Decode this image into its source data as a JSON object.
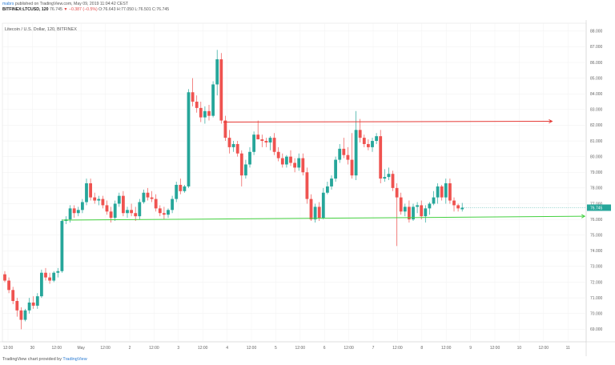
{
  "header": {
    "author": "mabrs",
    "published": "published on TradingView.com, May 09, 2019 11:04:42 CEST",
    "symbol": "BITFINEX:LTCUSD, 120",
    "price": "76.745",
    "change": "▼ −0.387 (−0.5%)",
    "ohlc": "O:76.643 H:77.050 L:76.501 C:76.745"
  },
  "chart_title": "Litecoin / U.S. Dollar, 120, BITFINEX",
  "footer": {
    "prefix": "TradingView chart provided by",
    "brand": "TradingView"
  },
  "colors": {
    "up": "#26a69a",
    "down": "#ef5350",
    "resistance": "#e53935",
    "support": "#43d13f",
    "last_price": "#26a69a"
  },
  "chart_data": {
    "type": "candlestick",
    "ylim": [
      68.2,
      88.5
    ],
    "yticks": [
      "88.000",
      "87.000",
      "86.000",
      "85.000",
      "84.000",
      "83.000",
      "82.000",
      "81.000",
      "80.000",
      "79.000",
      "78.000",
      "77.000",
      "76.000",
      "75.000",
      "74.000",
      "73.000",
      "72.000",
      "71.000",
      "70.000",
      "69.000"
    ],
    "xticks": [
      "12:00",
      "30",
      "12:00",
      "May",
      "12:00",
      "2",
      "12:00",
      "3",
      "12:00",
      "4",
      "12:00",
      "5",
      "12:00",
      "6",
      "12:00",
      "7",
      "12:00",
      "8",
      "12:00",
      "9",
      "12:00",
      "10",
      "12:00",
      "11",
      "12:00"
    ],
    "last_price_label": "76.745",
    "grid": true,
    "candles": [
      [
        72.5,
        72.7,
        72.0,
        72.1
      ],
      [
        72.1,
        72.3,
        71.3,
        71.5
      ],
      [
        71.5,
        71.7,
        70.6,
        70.8
      ],
      [
        70.8,
        71.0,
        69.8,
        70.2
      ],
      [
        70.2,
        70.4,
        69.0,
        69.6
      ],
      [
        69.6,
        70.3,
        69.5,
        70.2
      ],
      [
        70.2,
        71.0,
        70.0,
        70.7
      ],
      [
        70.7,
        71.1,
        70.3,
        70.5
      ],
      [
        70.5,
        71.3,
        70.3,
        71.1
      ],
      [
        71.1,
        72.8,
        71.0,
        72.6
      ],
      [
        72.6,
        72.9,
        72.1,
        72.3
      ],
      [
        72.3,
        72.6,
        71.9,
        72.1
      ],
      [
        72.1,
        72.7,
        72.0,
        72.6
      ],
      [
        72.6,
        72.9,
        72.3,
        72.7
      ],
      [
        72.7,
        76.0,
        72.6,
        75.9
      ],
      [
        75.9,
        76.2,
        75.7,
        76.0
      ],
      [
        76.0,
        76.9,
        75.8,
        76.7
      ],
      [
        76.7,
        76.9,
        76.1,
        76.4
      ],
      [
        76.4,
        76.8,
        76.2,
        76.6
      ],
      [
        76.6,
        77.3,
        76.4,
        77.1
      ],
      [
        77.1,
        78.6,
        76.9,
        78.3
      ],
      [
        78.3,
        78.6,
        77.2,
        77.4
      ],
      [
        77.4,
        77.7,
        77.0,
        77.2
      ],
      [
        77.2,
        77.5,
        76.9,
        77.3
      ],
      [
        77.3,
        77.5,
        76.7,
        76.9
      ],
      [
        76.9,
        77.2,
        76.3,
        76.5
      ],
      [
        76.5,
        76.8,
        75.8,
        76.1
      ],
      [
        76.1,
        77.2,
        75.9,
        77.0
      ],
      [
        77.0,
        77.7,
        76.8,
        77.5
      ],
      [
        77.5,
        77.8,
        76.2,
        76.4
      ],
      [
        76.4,
        76.8,
        76.1,
        76.6
      ],
      [
        76.6,
        77.0,
        76.2,
        76.4
      ],
      [
        76.4,
        76.8,
        75.9,
        76.2
      ],
      [
        76.2,
        77.3,
        76.0,
        77.1
      ],
      [
        77.1,
        77.9,
        77.0,
        77.7
      ],
      [
        77.7,
        78.0,
        77.2,
        77.4
      ],
      [
        77.4,
        77.8,
        77.1,
        77.3
      ],
      [
        77.3,
        77.6,
        76.5,
        76.7
      ],
      [
        76.7,
        76.9,
        76.2,
        76.4
      ],
      [
        76.4,
        76.8,
        76.0,
        76.3
      ],
      [
        76.3,
        76.7,
        76.1,
        76.6
      ],
      [
        76.6,
        77.5,
        76.4,
        77.3
      ],
      [
        77.3,
        78.4,
        77.1,
        78.2
      ],
      [
        78.2,
        78.6,
        77.6,
        77.8
      ],
      [
        77.8,
        78.2,
        77.7,
        78.1
      ],
      [
        78.1,
        84.3,
        78.0,
        84.1
      ],
      [
        84.1,
        85.0,
        83.2,
        83.5
      ],
      [
        83.5,
        83.9,
        82.8,
        83.1
      ],
      [
        83.1,
        83.5,
        82.2,
        82.5
      ],
      [
        82.5,
        83.2,
        82.1,
        82.9
      ],
      [
        82.9,
        83.3,
        82.3,
        82.6
      ],
      [
        82.6,
        84.8,
        82.5,
        84.6
      ],
      [
        84.6,
        86.8,
        83.9,
        86.2
      ],
      [
        86.2,
        86.6,
        82.1,
        82.3
      ],
      [
        82.3,
        82.6,
        81.0,
        81.2
      ],
      [
        81.2,
        81.7,
        80.2,
        80.6
      ],
      [
        80.6,
        81.0,
        80.3,
        80.8
      ],
      [
        80.8,
        81.0,
        80.0,
        80.2
      ],
      [
        80.2,
        80.4,
        78.1,
        78.8
      ],
      [
        78.8,
        79.8,
        78.6,
        79.5
      ],
      [
        79.5,
        80.6,
        79.3,
        80.3
      ],
      [
        80.3,
        81.6,
        80.1,
        81.4
      ],
      [
        81.4,
        82.3,
        81.2,
        81.1
      ],
      [
        81.1,
        81.4,
        80.6,
        81.0
      ],
      [
        81.0,
        81.2,
        80.6,
        80.9
      ],
      [
        80.9,
        81.3,
        80.4,
        81.2
      ],
      [
        81.2,
        81.5,
        80.1,
        80.3
      ],
      [
        80.3,
        80.6,
        79.7,
        79.9
      ],
      [
        79.9,
        80.2,
        79.3,
        79.5
      ],
      [
        79.5,
        80.1,
        79.3,
        80.0
      ],
      [
        80.0,
        80.4,
        79.4,
        79.6
      ],
      [
        79.6,
        79.9,
        79.0,
        79.3
      ],
      [
        79.3,
        80.2,
        79.1,
        79.9
      ],
      [
        79.9,
        80.2,
        78.8,
        79.0
      ],
      [
        79.0,
        79.3,
        77.0,
        77.3
      ],
      [
        77.3,
        77.6,
        75.9,
        76.0
      ],
      [
        76.0,
        77.0,
        75.8,
        76.8
      ],
      [
        76.8,
        77.1,
        75.9,
        76.1
      ],
      [
        76.1,
        78.0,
        76.0,
        77.7
      ],
      [
        77.7,
        78.4,
        77.6,
        78.1
      ],
      [
        78.1,
        78.8,
        77.9,
        78.6
      ],
      [
        78.6,
        80.0,
        78.4,
        79.8
      ],
      [
        79.8,
        80.8,
        79.6,
        80.5
      ],
      [
        80.5,
        81.2,
        79.9,
        80.1
      ],
      [
        80.1,
        80.6,
        79.5,
        79.8
      ],
      [
        79.8,
        81.5,
        78.6,
        78.8
      ],
      [
        78.8,
        82.9,
        78.5,
        81.7
      ],
      [
        81.7,
        82.4,
        80.9,
        81.2
      ],
      [
        81.2,
        81.4,
        80.6,
        80.8
      ],
      [
        80.8,
        81.1,
        80.4,
        80.6
      ],
      [
        80.6,
        81.2,
        80.3,
        81.0
      ],
      [
        81.0,
        81.5,
        80.8,
        81.3
      ],
      [
        81.3,
        81.7,
        78.3,
        78.6
      ],
      [
        78.6,
        79.2,
        78.4,
        78.7
      ],
      [
        78.7,
        79.3,
        78.5,
        78.9
      ],
      [
        78.9,
        79.1,
        77.8,
        78.0
      ],
      [
        78.0,
        78.3,
        74.3,
        77.4
      ],
      [
        77.4,
        77.7,
        76.3,
        76.5
      ],
      [
        76.5,
        77.0,
        76.2,
        76.8
      ],
      [
        76.8,
        77.2,
        75.8,
        76.0
      ],
      [
        76.0,
        77.0,
        75.9,
        76.8
      ],
      [
        76.8,
        77.1,
        76.4,
        76.9
      ],
      [
        76.9,
        77.2,
        76.0,
        76.2
      ],
      [
        76.2,
        76.9,
        75.8,
        76.7
      ],
      [
        76.7,
        77.1,
        76.3,
        77.0
      ],
      [
        77.0,
        77.8,
        76.9,
        77.4
      ],
      [
        77.4,
        78.3,
        77.0,
        78.1
      ],
      [
        78.1,
        78.2,
        77.2,
        77.4
      ],
      [
        77.4,
        78.6,
        77.0,
        78.3
      ],
      [
        78.3,
        78.6,
        77.0,
        77.2
      ],
      [
        77.2,
        77.4,
        76.5,
        76.9
      ],
      [
        76.9,
        77.0,
        76.5,
        76.7
      ],
      [
        76.643,
        77.05,
        76.501,
        76.745
      ]
    ],
    "lines": [
      {
        "name": "resistance",
        "start": [
          53.5,
          82.2
        ],
        "end": [
          134,
          82.25
        ]
      },
      {
        "name": "support",
        "start": [
          14,
          75.95
        ],
        "end": [
          142,
          76.2
        ]
      }
    ]
  }
}
